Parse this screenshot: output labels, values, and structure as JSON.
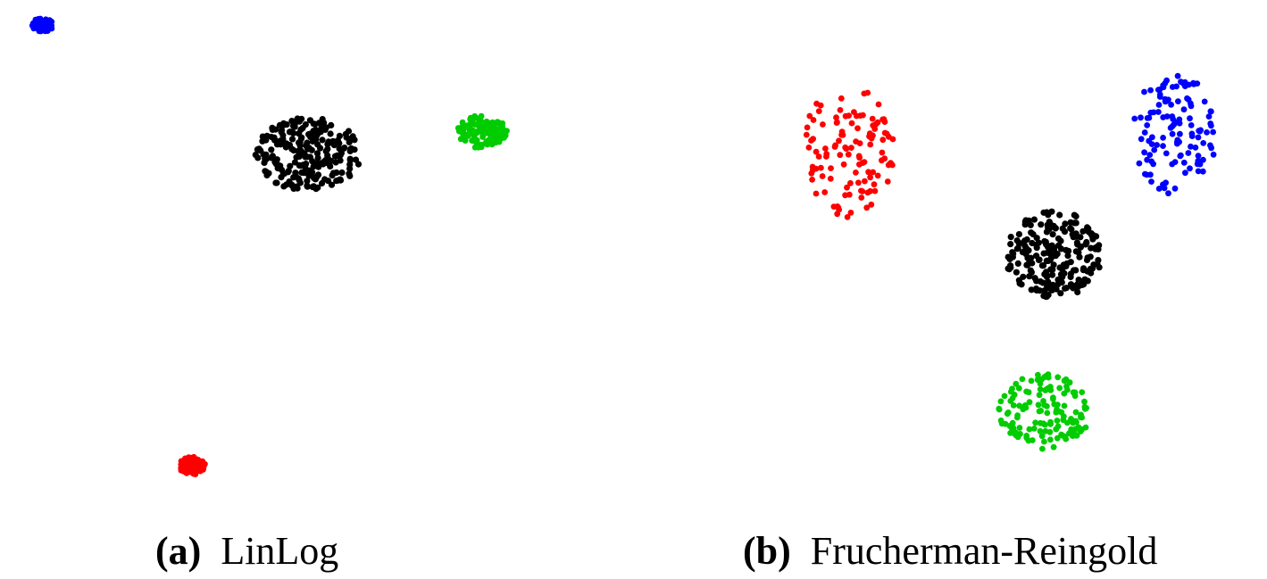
{
  "colors": {
    "blue": "#0000ff",
    "black": "#000000",
    "green": "#00cc00",
    "red": "#ff0000"
  },
  "captions": {
    "a": {
      "tag": "(a)",
      "label": "LinLog"
    },
    "b": {
      "tag": "(b)",
      "label": "Frucherman-Reingold"
    }
  },
  "chart_data": [
    {
      "type": "scatter",
      "title": "",
      "grid": false,
      "axes": "none",
      "series": [
        {
          "color": "blue",
          "center": [
            48,
            28
          ],
          "spread": [
            24,
            16
          ],
          "count": 55,
          "radius": 3.4
        },
        {
          "color": "black",
          "center": [
            345,
            173
          ],
          "spread": [
            118,
            82
          ],
          "count": 240,
          "radius": 3.6
        },
        {
          "color": "green",
          "center": [
            540,
            148
          ],
          "spread": [
            56,
            38
          ],
          "count": 120,
          "radius": 3.4
        },
        {
          "color": "red",
          "center": [
            215,
            522
          ],
          "spread": [
            30,
            20
          ],
          "count": 90,
          "radius": 3.4
        }
      ]
    },
    {
      "type": "scatter",
      "title": "",
      "grid": false,
      "axes": "none",
      "series": [
        {
          "color": "red",
          "center": [
            150,
            170
          ],
          "spread": [
            105,
            150
          ],
          "count": 115,
          "radius": 3.4
        },
        {
          "color": "blue",
          "center": [
            515,
            150
          ],
          "spread": [
            97,
            135
          ],
          "count": 120,
          "radius": 3.4
        },
        {
          "color": "black",
          "center": [
            380,
            285
          ],
          "spread": [
            108,
            98
          ],
          "count": 220,
          "radius": 3.6
        },
        {
          "color": "green",
          "center": [
            370,
            462
          ],
          "spread": [
            103,
            85
          ],
          "count": 140,
          "radius": 3.4
        }
      ]
    }
  ]
}
